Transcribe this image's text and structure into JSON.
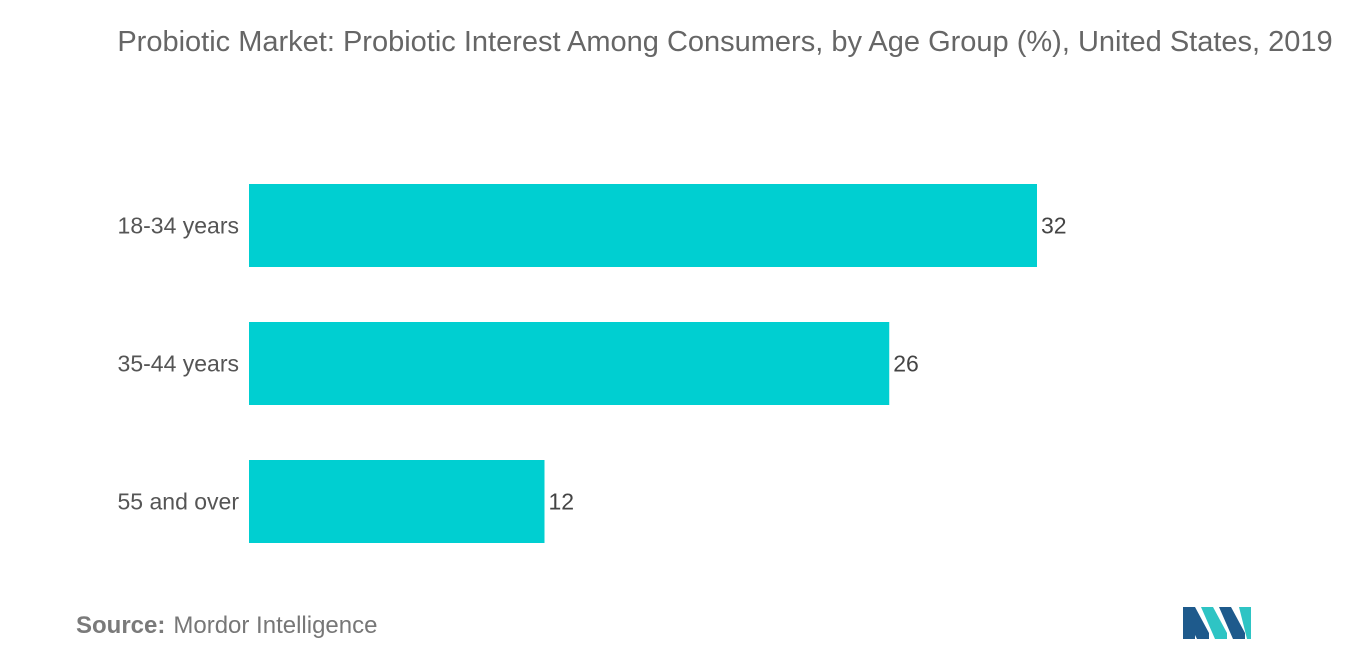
{
  "title": "Probiotic Market: Probiotic Interest Among Consumers, by Age Group (%), United States, 2019",
  "source": {
    "label": "Source:",
    "value": "Mordor Intelligence"
  },
  "logo": {
    "icon": "mordor-intelligence-logo-icon",
    "colors": [
      "#1e5a8c",
      "#2ec4c4"
    ]
  },
  "chart_data": {
    "type": "bar",
    "orientation": "horizontal",
    "categories": [
      "18-34 years",
      "35-44 years",
      "55 and over"
    ],
    "values": [
      32,
      26,
      12
    ],
    "data_labels": [
      "32",
      "26",
      "12"
    ],
    "title": "Probiotic Market: Probiotic Interest Among Consumers, by Age Group (%), United States, 2019",
    "xlabel": "",
    "ylabel": "",
    "xlim": [
      0,
      32
    ],
    "grid": false,
    "bar_color": "#00cfd1"
  }
}
